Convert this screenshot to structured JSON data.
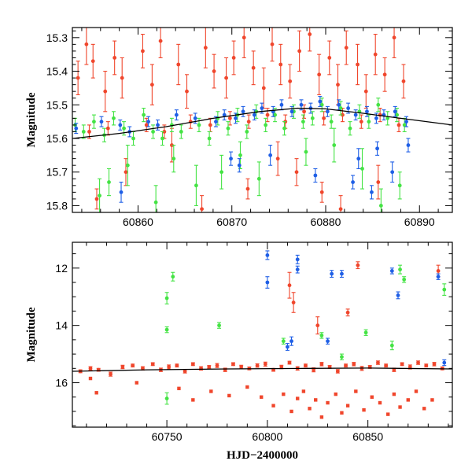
{
  "colors": {
    "red": "#f0462c",
    "green": "#44e344",
    "blue": "#1f5fe6",
    "model": "#000000"
  },
  "chart_data": [
    {
      "type": "scatter",
      "title": "",
      "xlabel": "",
      "ylabel": "Magnitude",
      "xlim": [
        60853,
        60893.5
      ],
      "ylim": [
        15.82,
        15.27
      ],
      "y_inverted": true,
      "xticks": [
        60860,
        60870,
        60880,
        60890
      ],
      "xtick_labels": [
        "60860",
        "60870",
        "60880",
        "60890"
      ],
      "yticks": [
        15.3,
        15.4,
        15.5,
        15.6,
        15.7,
        15.8
      ],
      "ytick_labels": [
        "15.3",
        "15.4",
        "15.5",
        "15.6",
        "15.7",
        "15.8"
      ],
      "grid": false,
      "model_curve": {
        "x": [
          60853,
          60858,
          60863,
          60868,
          60873,
          60877,
          60880,
          60884,
          60888,
          60893.5
        ],
        "y": [
          15.6,
          15.585,
          15.565,
          15.54,
          15.52,
          15.51,
          15.512,
          15.525,
          15.54,
          15.56
        ]
      },
      "series": [
        {
          "color": "red",
          "x": [
            60853.6,
            60854.5,
            60855.2,
            60856.5,
            60857.5,
            60858.3,
            60860.5,
            60861.5,
            60862.4,
            60864.3,
            60865.2,
            60867.2,
            60868.1,
            60869.4,
            60870.2,
            60871.3,
            60872.3,
            60873.4,
            60874.3,
            60875.2,
            60876.2,
            60877.2,
            60878.3,
            60879.3,
            60880.4,
            60881.3,
            60882.2,
            60883.4,
            60884.3,
            60885.3,
            60886.3,
            60887.3,
            60888.3,
            60854.8,
            60856.8,
            60860.9,
            60862.8,
            60865.6,
            60867.7,
            60869.8,
            60871.8,
            60873.8,
            60875.7,
            60877.7,
            60879.8,
            60881.8,
            60883.8,
            60885.8,
            60887.8
          ],
          "y": [
            15.42,
            15.32,
            15.37,
            15.46,
            15.36,
            15.42,
            15.34,
            15.44,
            15.31,
            15.38,
            15.46,
            15.33,
            15.4,
            15.42,
            15.36,
            15.3,
            15.39,
            15.45,
            15.32,
            15.38,
            15.43,
            15.34,
            15.29,
            15.41,
            15.36,
            15.44,
            15.33,
            15.38,
            15.46,
            15.35,
            15.41,
            15.3,
            15.43,
            15.58,
            15.57,
            15.56,
            15.58,
            15.55,
            15.56,
            15.54,
            15.55,
            15.53,
            15.55,
            15.52,
            15.54,
            15.53,
            15.55,
            15.53,
            15.56
          ],
          "err": [
            0.05,
            0.06,
            0.05,
            0.06,
            0.05,
            0.06,
            0.05,
            0.06,
            0.05,
            0.06,
            0.05,
            0.06,
            0.05,
            0.06,
            0.05,
            0.06,
            0.05,
            0.06,
            0.05,
            0.06,
            0.05,
            0.06,
            0.05,
            0.06,
            0.05,
            0.06,
            0.05,
            0.06,
            0.05,
            0.06,
            0.05,
            0.06,
            0.05,
            0.02,
            0.02,
            0.02,
            0.02,
            0.02,
            0.02,
            0.02,
            0.02,
            0.02,
            0.02,
            0.02,
            0.02,
            0.02,
            0.02,
            0.02,
            0.02
          ]
        },
        {
          "color": "red",
          "x": [
            60855.6,
            60858.7,
            60863.6,
            60866.8,
            60871.7,
            60874.9,
            60876.9,
            60879.6,
            60881.6,
            60885.6
          ],
          "y": [
            15.78,
            15.7,
            15.62,
            15.81,
            15.75,
            15.66,
            15.7,
            15.76,
            15.81,
            15.73
          ],
          "err": [
            0.03,
            0.04,
            0.05,
            0.04,
            0.03,
            0.05,
            0.04,
            0.03,
            0.04,
            0.05
          ]
        },
        {
          "color": "green",
          "x": [
            60853.3,
            60854.2,
            60855.3,
            60856.4,
            60857.4,
            60858.5,
            60859.5,
            60860.6,
            60861.6,
            60862.6,
            60863.6,
            60864.6,
            60866.5,
            60867.6,
            60868.5,
            60869.6,
            60870.6,
            60871.6,
            60872.6,
            60873.6,
            60874.6,
            60875.6,
            60876.6,
            60877.6,
            60878.6,
            60879.6,
            60880.6,
            60881.6,
            60882.6,
            60883.6,
            60884.6,
            60885.6,
            60886.6,
            60887.6,
            60888.4
          ],
          "y": [
            15.56,
            15.58,
            15.55,
            15.59,
            15.54,
            15.57,
            15.6,
            15.53,
            15.58,
            15.6,
            15.56,
            15.58,
            15.56,
            15.6,
            15.54,
            15.57,
            15.53,
            15.58,
            15.52,
            15.56,
            15.53,
            15.57,
            15.52,
            15.55,
            15.54,
            15.5,
            15.55,
            15.51,
            15.57,
            15.52,
            15.55,
            15.5,
            15.54,
            15.53,
            15.56
          ],
          "err": [
            0.02,
            0.02,
            0.02,
            0.02,
            0.02,
            0.02,
            0.02,
            0.02,
            0.02,
            0.02,
            0.02,
            0.02,
            0.02,
            0.02,
            0.02,
            0.02,
            0.02,
            0.02,
            0.02,
            0.02,
            0.02,
            0.02,
            0.02,
            0.02,
            0.02,
            0.02,
            0.02,
            0.02,
            0.02,
            0.02,
            0.02,
            0.02,
            0.02,
            0.02,
            0.02
          ]
        },
        {
          "color": "green",
          "x": [
            60855.9,
            60856.9,
            60858.9,
            60861.9,
            60863.8,
            60866.2,
            60868.9,
            60870.9,
            60872.9,
            60877.9,
            60880.9,
            60883.9,
            60885.9,
            60887.9
          ],
          "y": [
            15.77,
            15.73,
            15.68,
            15.79,
            15.66,
            15.74,
            15.7,
            15.65,
            15.72,
            15.64,
            15.62,
            15.69,
            15.8,
            15.74
          ],
          "err": [
            0.05,
            0.04,
            0.06,
            0.05,
            0.04,
            0.06,
            0.05,
            0.04,
            0.05,
            0.04,
            0.05,
            0.06,
            0.05,
            0.04
          ]
        },
        {
          "color": "blue",
          "x": [
            60853.4,
            60856.1,
            60858.1,
            60859.1,
            60861.1,
            60862.1,
            60864.1,
            60866.1,
            60868.3,
            60869.2,
            60870.4,
            60871.2,
            60872.4,
            60873.2,
            60874.4,
            60875.3,
            60876.4,
            60877.4,
            60878.4,
            60879.4,
            60880.2,
            60881.4,
            60882.4,
            60883.2,
            60884.4,
            60885.4,
            60886.2,
            60887.4,
            60888.6
          ],
          "y": [
            15.57,
            15.55,
            15.56,
            15.58,
            15.55,
            15.56,
            15.53,
            15.54,
            15.55,
            15.53,
            15.54,
            15.52,
            15.53,
            15.51,
            15.52,
            15.5,
            15.52,
            15.5,
            15.51,
            15.49,
            15.52,
            15.5,
            15.51,
            15.53,
            15.52,
            15.54,
            15.53,
            15.52,
            15.55
          ],
          "err": [
            0.015,
            0.015,
            0.015,
            0.015,
            0.015,
            0.015,
            0.015,
            0.015,
            0.015,
            0.015,
            0.015,
            0.015,
            0.015,
            0.015,
            0.015,
            0.015,
            0.015,
            0.015,
            0.015,
            0.015,
            0.015,
            0.015,
            0.015,
            0.015,
            0.015,
            0.015,
            0.015,
            0.015,
            0.015
          ]
        },
        {
          "color": "blue",
          "x": [
            60858.2,
            60869.9,
            60870.8,
            60874.1,
            60878.9,
            60882.9,
            60883.5,
            60884.9,
            60885.5,
            60887.1,
            60888.8
          ],
          "y": [
            15.76,
            15.66,
            15.68,
            15.65,
            15.71,
            15.73,
            15.66,
            15.76,
            15.63,
            15.7,
            15.62
          ],
          "err": [
            0.03,
            0.02,
            0.02,
            0.03,
            0.02,
            0.02,
            0.03,
            0.02,
            0.02,
            0.03,
            0.02
          ]
        }
      ]
    },
    {
      "type": "scatter",
      "title": "",
      "xlabel": "HJD−2400000",
      "ylabel": "Magnitude",
      "xlim": [
        60703,
        60892
      ],
      "ylim": [
        17.55,
        11.1
      ],
      "y_inverted": true,
      "xticks": [
        60750,
        60800,
        60850
      ],
      "xtick_labels": [
        "60750",
        "60800",
        "60850"
      ],
      "yticks": [
        12,
        14,
        16
      ],
      "ytick_labels": [
        "12",
        "14",
        "16"
      ],
      "grid": false,
      "model_curve": {
        "x": [
          60703,
          60740,
          60780,
          60820,
          60850,
          60892
        ],
        "y": [
          15.6,
          15.55,
          15.52,
          15.5,
          15.49,
          15.52
        ]
      },
      "series": [
        {
          "color": "red",
          "x": [
            60707,
            60712,
            60716,
            60722,
            60728,
            60733,
            60738,
            60743,
            60747,
            60751,
            60755,
            60759,
            60763,
            60767,
            60771,
            60775,
            60779,
            60783,
            60787,
            60791,
            60795,
            60799,
            60803,
            60807,
            60811,
            60815,
            60819,
            60823,
            60827,
            60831,
            60835,
            60839,
            60843,
            60847,
            60851,
            60855,
            60859,
            60863,
            60867,
            60871,
            60875,
            60879,
            60883,
            60887
          ],
          "y": [
            15.6,
            15.5,
            15.55,
            15.7,
            15.45,
            15.4,
            15.5,
            15.35,
            15.55,
            15.45,
            15.4,
            15.6,
            15.35,
            15.5,
            15.45,
            15.4,
            15.55,
            15.35,
            15.45,
            15.5,
            15.4,
            15.35,
            15.55,
            15.45,
            15.3,
            15.5,
            15.4,
            15.55,
            15.35,
            15.45,
            15.6,
            15.4,
            15.35,
            15.5,
            15.45,
            15.3,
            15.4,
            15.55,
            15.35,
            15.45,
            15.3,
            15.4,
            15.35,
            15.5
          ],
          "err": [
            0.05,
            0.06,
            0.05,
            0.07,
            0.06,
            0.05,
            0.06,
            0.05,
            0.06,
            0.07,
            0.05,
            0.06,
            0.05,
            0.06,
            0.05,
            0.07,
            0.06,
            0.05,
            0.06,
            0.05,
            0.06,
            0.07,
            0.05,
            0.06,
            0.05,
            0.06,
            0.05,
            0.07,
            0.06,
            0.05,
            0.06,
            0.05,
            0.06,
            0.07,
            0.05,
            0.06,
            0.05,
            0.06,
            0.05,
            0.07,
            0.06,
            0.05,
            0.06,
            0.05
          ]
        },
        {
          "color": "red",
          "x": [
            60712,
            60715,
            60735,
            60756,
            60763,
            60772,
            60781,
            60790,
            60797,
            60803,
            60808,
            60812,
            60815,
            60818,
            60821,
            60824,
            60827,
            60830,
            60834,
            60837,
            60840,
            60844,
            60848,
            60852,
            60856,
            60860,
            60863,
            60866,
            60870,
            60874,
            60878,
            60882
          ],
          "y": [
            15.85,
            16.35,
            16.0,
            16.2,
            16.6,
            16.3,
            16.45,
            16.15,
            16.5,
            16.8,
            16.4,
            17.0,
            16.55,
            16.3,
            16.9,
            16.6,
            17.2,
            16.7,
            16.4,
            17.05,
            16.8,
            16.3,
            16.95,
            16.5,
            16.7,
            17.1,
            16.4,
            16.85,
            16.6,
            16.3,
            16.9,
            16.6
          ],
          "err": [
            0,
            0,
            0,
            0,
            0,
            0,
            0,
            0,
            0,
            0,
            0,
            0,
            0,
            0,
            0,
            0,
            0,
            0,
            0,
            0,
            0,
            0,
            0,
            0,
            0,
            0,
            0,
            0,
            0,
            0,
            0,
            0
          ]
        },
        {
          "color": "red",
          "x": [
            60811,
            60813,
            60825,
            60840,
            60845,
            60885
          ],
          "y": [
            12.6,
            13.2,
            14.0,
            13.55,
            11.9,
            12.1
          ],
          "err": [
            0.45,
            0.35,
            0.3,
            0.12,
            0.12,
            0.2
          ]
        },
        {
          "color": "green",
          "x": [
            60750,
            60753,
            60750,
            60776,
            60808,
            60827,
            60837,
            60849,
            60862,
            60866,
            60868,
            60888,
            60750
          ],
          "y": [
            13.05,
            12.3,
            14.15,
            14.0,
            14.55,
            14.35,
            15.1,
            14.25,
            14.7,
            12.05,
            12.4,
            12.75,
            16.55
          ],
          "err": [
            0.2,
            0.15,
            0.1,
            0.1,
            0.1,
            0.1,
            0.1,
            0.1,
            0.15,
            0.15,
            0.1,
            0.2,
            0.2
          ]
        },
        {
          "color": "blue",
          "x": [
            60800,
            60800,
            60812,
            60815,
            60815,
            60810,
            60832,
            60837,
            60830,
            60862,
            60865,
            60885,
            60888
          ],
          "y": [
            11.55,
            12.5,
            14.55,
            11.7,
            12.05,
            14.75,
            12.2,
            12.2,
            14.55,
            12.1,
            12.95,
            12.3,
            15.3
          ],
          "err": [
            0.15,
            0.2,
            0.15,
            0.15,
            0.12,
            0.12,
            0.12,
            0.12,
            0.1,
            0.1,
            0.12,
            0.1,
            0.1
          ]
        }
      ]
    }
  ]
}
